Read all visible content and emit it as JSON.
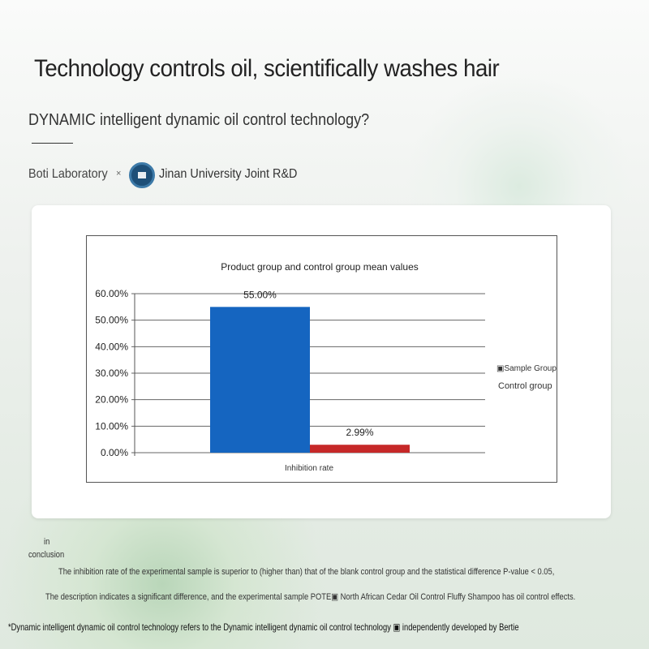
{
  "header": {
    "title": "Technology controls oil, scientifically washes hair",
    "subtitle": "DYNAMIC intelligent dynamic oil control technology?",
    "lab": "Boti Laboratory",
    "times": "×",
    "university": "Jinan University Joint R&D"
  },
  "chart_data": {
    "type": "bar",
    "title": "Product group and control group mean values",
    "categories": [
      "Inhibition rate"
    ],
    "series": [
      {
        "name": "Sample Group",
        "values": [
          55.0
        ],
        "color": "#1565c0",
        "label": "55.00%"
      },
      {
        "name": "Control group",
        "values": [
          2.99
        ],
        "color": "#c62828",
        "label": "2.99%"
      }
    ],
    "yticks": [
      "0.00%",
      "10.00%",
      "20.00%",
      "30.00%",
      "40.00%",
      "50.00%",
      "60.00%"
    ],
    "ylim": [
      0,
      60
    ],
    "grid": true,
    "legend": "right",
    "legend_labels": [
      "▣Sample Group",
      "Control group"
    ]
  },
  "conclusion": {
    "heading_1": "in",
    "heading_2": "conclusion",
    "line1": "The inhibition rate of the experimental sample is superior to (higher than) that of the blank control group and the statistical difference P-value < 0.05,",
    "line2": "The description indicates a significant difference, and the experimental sample POTE▣ North African Cedar Oil Control Fluffy Shampoo has oil control effects.",
    "footnote": "*Dynamic intelligent dynamic oil control technology refers to the Dynamic intelligent dynamic oil control technology ▣ independently developed by Bertie"
  }
}
